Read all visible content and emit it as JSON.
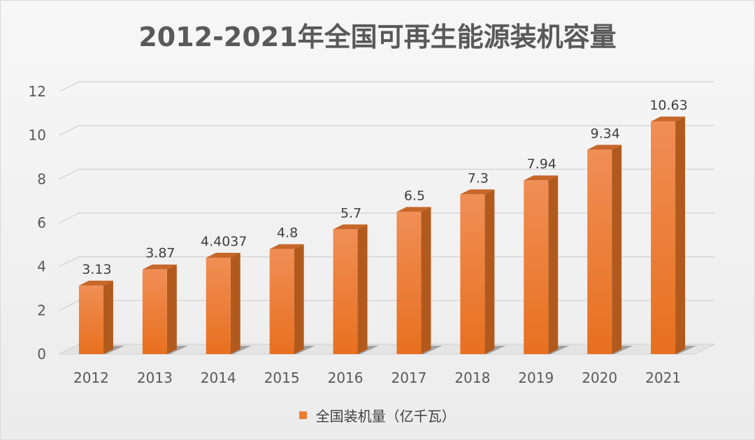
{
  "chart_data": {
    "type": "bar",
    "title": "2012-2021年全国可再生能源装机容量",
    "categories": [
      "2012",
      "2013",
      "2014",
      "2015",
      "2016",
      "2017",
      "2018",
      "2019",
      "2020",
      "2021"
    ],
    "series": [
      {
        "name": "全国装机量（亿千瓦）",
        "values": [
          3.13,
          3.87,
          4.4037,
          4.8,
          5.7,
          6.5,
          7.3,
          7.94,
          9.34,
          10.63
        ],
        "labels": [
          "3.13",
          "3.87",
          "4.4037",
          "4.8",
          "5.7",
          "6.5",
          "7.3",
          "7.94",
          "9.34",
          "10.63"
        ],
        "color": "#ed7d31"
      }
    ],
    "ylim": [
      0,
      12
    ],
    "yticks": [
      0,
      2,
      4,
      6,
      8,
      10,
      12
    ],
    "grid": true,
    "legend": "bottom",
    "xlabel": "",
    "ylabel": ""
  }
}
